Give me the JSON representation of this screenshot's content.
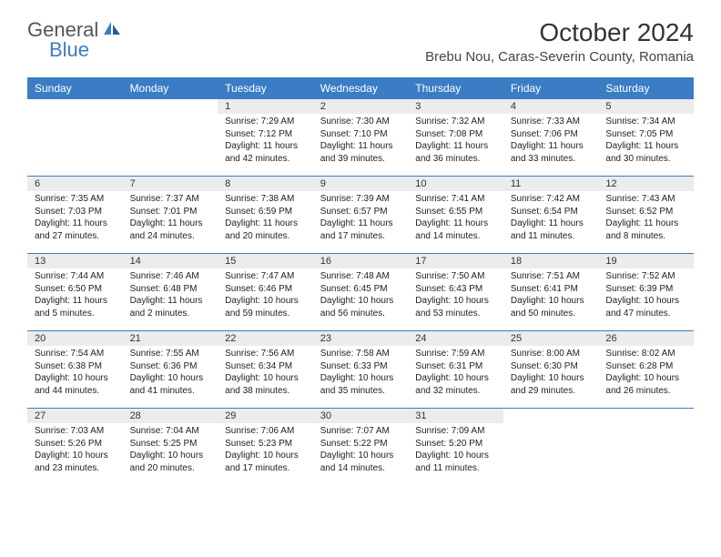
{
  "brand": {
    "text1": "General",
    "text2": "Blue"
  },
  "title": "October 2024",
  "location": "Brebu Nou, Caras-Severin County, Romania",
  "colors": {
    "header_bg": "#3b7dc4",
    "date_row_bg": "#ececec",
    "page_bg": "#ffffff",
    "text": "#222222",
    "title_text": "#333333"
  },
  "day_names": [
    "Sunday",
    "Monday",
    "Tuesday",
    "Wednesday",
    "Thursday",
    "Friday",
    "Saturday"
  ],
  "weeks": [
    [
      {
        "empty": true
      },
      {
        "empty": true
      },
      {
        "date": "1",
        "sunrise": "Sunrise: 7:29 AM",
        "sunset": "Sunset: 7:12 PM",
        "daylight": "Daylight: 11 hours and 42 minutes."
      },
      {
        "date": "2",
        "sunrise": "Sunrise: 7:30 AM",
        "sunset": "Sunset: 7:10 PM",
        "daylight": "Daylight: 11 hours and 39 minutes."
      },
      {
        "date": "3",
        "sunrise": "Sunrise: 7:32 AM",
        "sunset": "Sunset: 7:08 PM",
        "daylight": "Daylight: 11 hours and 36 minutes."
      },
      {
        "date": "4",
        "sunrise": "Sunrise: 7:33 AM",
        "sunset": "Sunset: 7:06 PM",
        "daylight": "Daylight: 11 hours and 33 minutes."
      },
      {
        "date": "5",
        "sunrise": "Sunrise: 7:34 AM",
        "sunset": "Sunset: 7:05 PM",
        "daylight": "Daylight: 11 hours and 30 minutes."
      }
    ],
    [
      {
        "date": "6",
        "sunrise": "Sunrise: 7:35 AM",
        "sunset": "Sunset: 7:03 PM",
        "daylight": "Daylight: 11 hours and 27 minutes."
      },
      {
        "date": "7",
        "sunrise": "Sunrise: 7:37 AM",
        "sunset": "Sunset: 7:01 PM",
        "daylight": "Daylight: 11 hours and 24 minutes."
      },
      {
        "date": "8",
        "sunrise": "Sunrise: 7:38 AM",
        "sunset": "Sunset: 6:59 PM",
        "daylight": "Daylight: 11 hours and 20 minutes."
      },
      {
        "date": "9",
        "sunrise": "Sunrise: 7:39 AM",
        "sunset": "Sunset: 6:57 PM",
        "daylight": "Daylight: 11 hours and 17 minutes."
      },
      {
        "date": "10",
        "sunrise": "Sunrise: 7:41 AM",
        "sunset": "Sunset: 6:55 PM",
        "daylight": "Daylight: 11 hours and 14 minutes."
      },
      {
        "date": "11",
        "sunrise": "Sunrise: 7:42 AM",
        "sunset": "Sunset: 6:54 PM",
        "daylight": "Daylight: 11 hours and 11 minutes."
      },
      {
        "date": "12",
        "sunrise": "Sunrise: 7:43 AM",
        "sunset": "Sunset: 6:52 PM",
        "daylight": "Daylight: 11 hours and 8 minutes."
      }
    ],
    [
      {
        "date": "13",
        "sunrise": "Sunrise: 7:44 AM",
        "sunset": "Sunset: 6:50 PM",
        "daylight": "Daylight: 11 hours and 5 minutes."
      },
      {
        "date": "14",
        "sunrise": "Sunrise: 7:46 AM",
        "sunset": "Sunset: 6:48 PM",
        "daylight": "Daylight: 11 hours and 2 minutes."
      },
      {
        "date": "15",
        "sunrise": "Sunrise: 7:47 AM",
        "sunset": "Sunset: 6:46 PM",
        "daylight": "Daylight: 10 hours and 59 minutes."
      },
      {
        "date": "16",
        "sunrise": "Sunrise: 7:48 AM",
        "sunset": "Sunset: 6:45 PM",
        "daylight": "Daylight: 10 hours and 56 minutes."
      },
      {
        "date": "17",
        "sunrise": "Sunrise: 7:50 AM",
        "sunset": "Sunset: 6:43 PM",
        "daylight": "Daylight: 10 hours and 53 minutes."
      },
      {
        "date": "18",
        "sunrise": "Sunrise: 7:51 AM",
        "sunset": "Sunset: 6:41 PM",
        "daylight": "Daylight: 10 hours and 50 minutes."
      },
      {
        "date": "19",
        "sunrise": "Sunrise: 7:52 AM",
        "sunset": "Sunset: 6:39 PM",
        "daylight": "Daylight: 10 hours and 47 minutes."
      }
    ],
    [
      {
        "date": "20",
        "sunrise": "Sunrise: 7:54 AM",
        "sunset": "Sunset: 6:38 PM",
        "daylight": "Daylight: 10 hours and 44 minutes."
      },
      {
        "date": "21",
        "sunrise": "Sunrise: 7:55 AM",
        "sunset": "Sunset: 6:36 PM",
        "daylight": "Daylight: 10 hours and 41 minutes."
      },
      {
        "date": "22",
        "sunrise": "Sunrise: 7:56 AM",
        "sunset": "Sunset: 6:34 PM",
        "daylight": "Daylight: 10 hours and 38 minutes."
      },
      {
        "date": "23",
        "sunrise": "Sunrise: 7:58 AM",
        "sunset": "Sunset: 6:33 PM",
        "daylight": "Daylight: 10 hours and 35 minutes."
      },
      {
        "date": "24",
        "sunrise": "Sunrise: 7:59 AM",
        "sunset": "Sunset: 6:31 PM",
        "daylight": "Daylight: 10 hours and 32 minutes."
      },
      {
        "date": "25",
        "sunrise": "Sunrise: 8:00 AM",
        "sunset": "Sunset: 6:30 PM",
        "daylight": "Daylight: 10 hours and 29 minutes."
      },
      {
        "date": "26",
        "sunrise": "Sunrise: 8:02 AM",
        "sunset": "Sunset: 6:28 PM",
        "daylight": "Daylight: 10 hours and 26 minutes."
      }
    ],
    [
      {
        "date": "27",
        "sunrise": "Sunrise: 7:03 AM",
        "sunset": "Sunset: 5:26 PM",
        "daylight": "Daylight: 10 hours and 23 minutes."
      },
      {
        "date": "28",
        "sunrise": "Sunrise: 7:04 AM",
        "sunset": "Sunset: 5:25 PM",
        "daylight": "Daylight: 10 hours and 20 minutes."
      },
      {
        "date": "29",
        "sunrise": "Sunrise: 7:06 AM",
        "sunset": "Sunset: 5:23 PM",
        "daylight": "Daylight: 10 hours and 17 minutes."
      },
      {
        "date": "30",
        "sunrise": "Sunrise: 7:07 AM",
        "sunset": "Sunset: 5:22 PM",
        "daylight": "Daylight: 10 hours and 14 minutes."
      },
      {
        "date": "31",
        "sunrise": "Sunrise: 7:09 AM",
        "sunset": "Sunset: 5:20 PM",
        "daylight": "Daylight: 10 hours and 11 minutes."
      },
      {
        "empty": true
      },
      {
        "empty": true
      }
    ]
  ]
}
